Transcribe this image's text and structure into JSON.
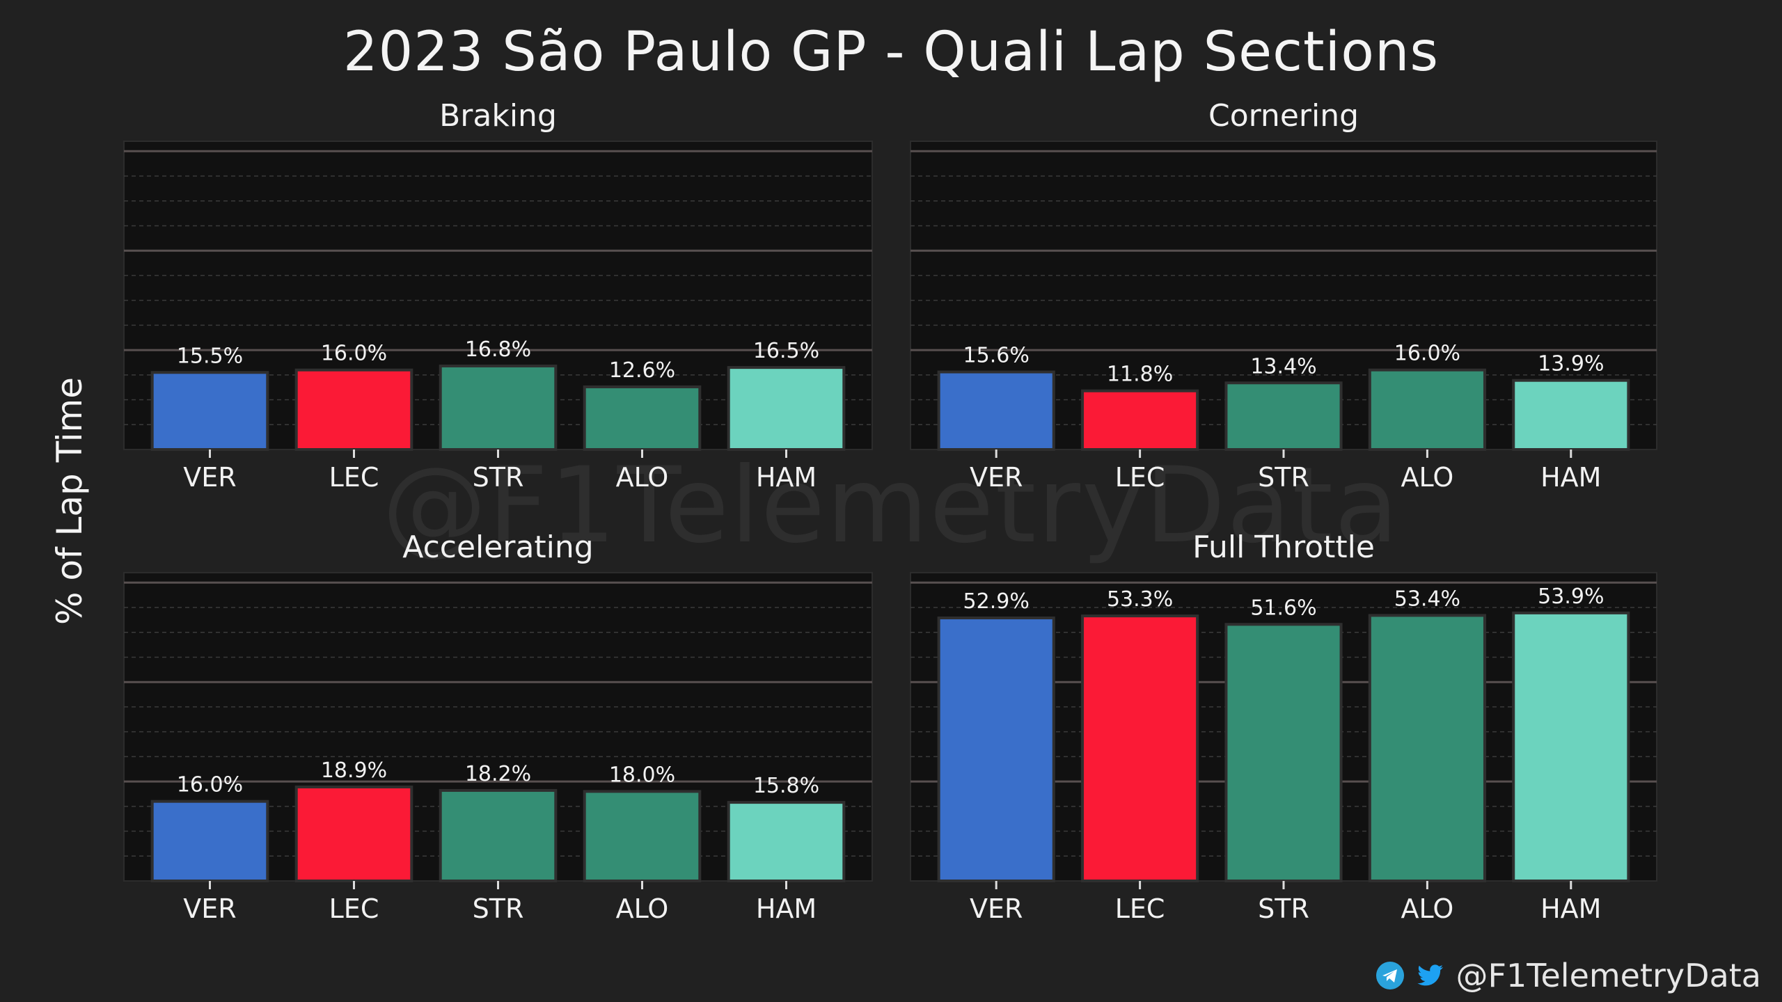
{
  "title": "2023 São Paulo GP - Quali Lap Sections",
  "ylabel": "% of Lap Time",
  "watermark": "@F1TelemetryData",
  "footer": {
    "handle": "@F1TelemetryData",
    "icons": [
      "telegram-icon",
      "twitter-icon"
    ]
  },
  "colors": {
    "VER": "#3a6fca",
    "LEC": "#fb1a36",
    "STR": "#348e74",
    "ALO": "#348e74",
    "HAM": "#6cd3be",
    "plot_bg": "#111111",
    "page_bg": "#212121"
  },
  "chart_data": [
    {
      "type": "bar",
      "title": "Braking",
      "categories": [
        "VER",
        "LEC",
        "STR",
        "ALO",
        "HAM"
      ],
      "values": [
        15.5,
        16.0,
        16.8,
        12.6,
        16.5
      ],
      "labels": [
        "15.5%",
        "16.0%",
        "16.8%",
        "12.6%",
        "16.5%"
      ],
      "ylim": [
        0,
        62
      ],
      "grid": true
    },
    {
      "type": "bar",
      "title": "Cornering",
      "categories": [
        "VER",
        "LEC",
        "STR",
        "ALO",
        "HAM"
      ],
      "values": [
        15.6,
        11.8,
        13.4,
        16.0,
        13.9
      ],
      "labels": [
        "15.6%",
        "11.8%",
        "13.4%",
        "16.0%",
        "13.9%"
      ],
      "ylim": [
        0,
        62
      ],
      "grid": true
    },
    {
      "type": "bar",
      "title": "Accelerating",
      "categories": [
        "VER",
        "LEC",
        "STR",
        "ALO",
        "HAM"
      ],
      "values": [
        16.0,
        18.9,
        18.2,
        18.0,
        15.8
      ],
      "labels": [
        "16.0%",
        "18.9%",
        "18.2%",
        "18.0%",
        "15.8%"
      ],
      "ylim": [
        0,
        62
      ],
      "grid": true
    },
    {
      "type": "bar",
      "title": "Full Throttle",
      "categories": [
        "VER",
        "LEC",
        "STR",
        "ALO",
        "HAM"
      ],
      "values": [
        52.9,
        53.3,
        51.6,
        53.4,
        53.9
      ],
      "labels": [
        "52.9%",
        "53.3%",
        "51.6%",
        "53.4%",
        "53.9%"
      ],
      "ylim": [
        0,
        62
      ],
      "grid": true
    }
  ]
}
